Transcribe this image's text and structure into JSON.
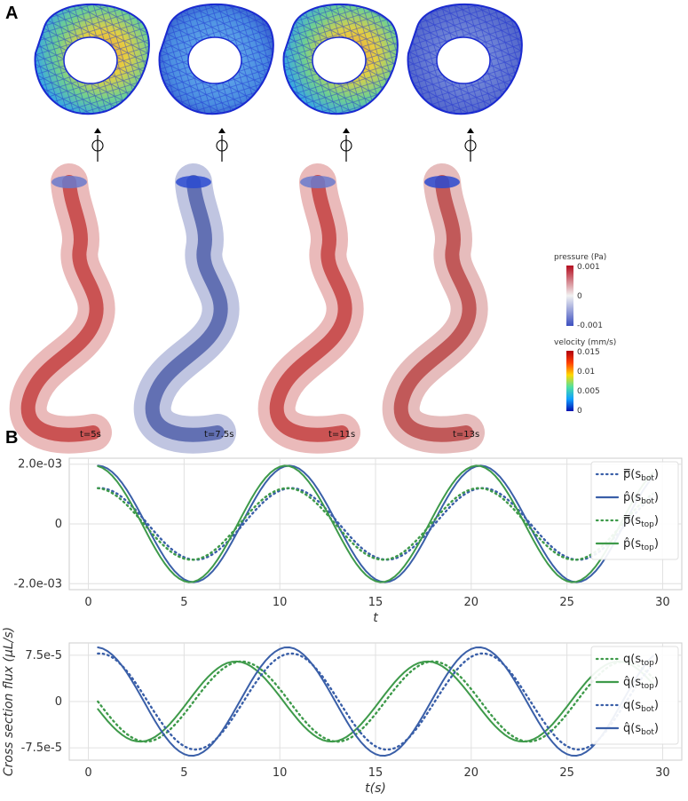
{
  "panels": {
    "a": "A",
    "b": "B"
  },
  "snapshots": [
    {
      "label": "t=5s",
      "state": "high"
    },
    {
      "label": "t=7.5s",
      "state": "low"
    },
    {
      "label": "t=11s",
      "state": "high"
    },
    {
      "label": "t=13s",
      "state": "none"
    }
  ],
  "colorbars": {
    "pressure": {
      "title": "pressure (Pa)",
      "ticks": [
        "0.001",
        "0",
        "-0.001"
      ]
    },
    "velocity": {
      "title": "velocity (mm/s)",
      "ticks": [
        "0.015",
        "0.01",
        "0.005",
        "0"
      ]
    }
  },
  "colors": {
    "blue": "#3a5fa8",
    "green": "#3e9a4a"
  },
  "chart_data": [
    {
      "type": "line",
      "xlabel": "t",
      "ylabel": "",
      "xlim": [
        -1,
        31
      ],
      "ylim": [
        -0.0022,
        0.0022
      ],
      "xticks": [
        "0",
        "5",
        "10",
        "15",
        "20",
        "25",
        "30"
      ],
      "yticks": [
        "2.0e-03",
        "0",
        "-2.0e-03"
      ],
      "legend_position": "right",
      "series": [
        {
          "name": "p̿(s_bot)",
          "legend_main": "p̿(s",
          "legend_sub": "bot",
          "color": "#3a5fa8",
          "dash": "dotted",
          "amplitude": 0.0012,
          "phase": 0.6
        },
        {
          "name": "p̂(s_bot)",
          "legend_main": "p̂(s",
          "legend_sub": "bot",
          "color": "#3a5fa8",
          "dash": "solid",
          "amplitude": 0.00195,
          "phase": 0.5
        },
        {
          "name": "p̿(s_top)",
          "legend_main": "p̿(s",
          "legend_sub": "top",
          "color": "#3e9a4a",
          "dash": "dotted",
          "amplitude": 0.0012,
          "phase": 0.4
        },
        {
          "name": "p̂(s_top)",
          "legend_main": "p̂(s",
          "legend_sub": "top",
          "color": "#3e9a4a",
          "dash": "solid",
          "amplitude": 0.00195,
          "phase": 0.3
        }
      ]
    },
    {
      "type": "line",
      "xlabel": "t(s)",
      "ylabel": "Cross section flux (μL/s)",
      "xlim": [
        -1,
        31
      ],
      "ylim": [
        -9.5e-05,
        9.5e-05
      ],
      "xticks": [
        "0",
        "5",
        "10",
        "15",
        "20",
        "25",
        "30"
      ],
      "yticks": [
        "7.5e-5",
        "0",
        "-7.5e-5"
      ],
      "legend_position": "right",
      "series": [
        {
          "name": "q(s_top)",
          "legend_main": "q(s",
          "legend_sub": "top",
          "color": "#3e9a4a",
          "dash": "dotted",
          "amplitude": 6.5e-05,
          "phase": -2.0
        },
        {
          "name": "q̂(s_top)",
          "legend_main": "q̂(s",
          "legend_sub": "top",
          "color": "#3e9a4a",
          "dash": "solid",
          "amplitude": 6.5e-05,
          "phase": -2.3
        },
        {
          "name": "q(s_bot)",
          "legend_main": "q(s",
          "legend_sub": "bot",
          "color": "#3a5fa8",
          "dash": "dotted",
          "amplitude": 7.8e-05,
          "phase": 0.6
        },
        {
          "name": "q̂(s_bot)",
          "legend_main": "q̂(s",
          "legend_sub": "bot",
          "color": "#3a5fa8",
          "dash": "solid",
          "amplitude": 8.8e-05,
          "phase": 0.4
        }
      ]
    }
  ]
}
